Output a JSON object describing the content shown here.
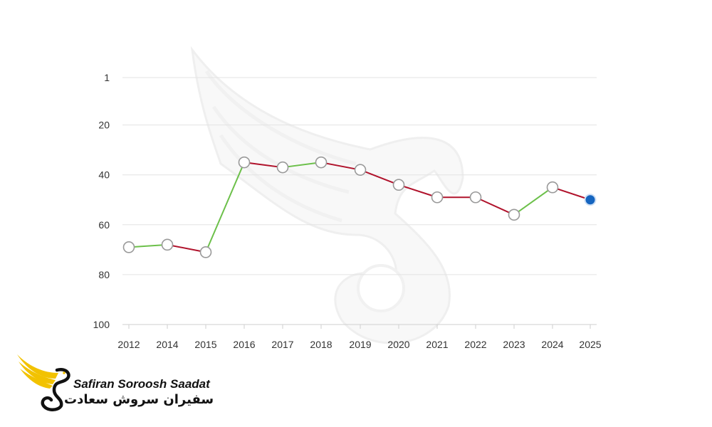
{
  "brand": {
    "name_en": "Safiran Soroosh Saadat",
    "name_fa": "سفیران سروش سعادت",
    "logo_icon": "swan-wing-icon",
    "watermark_icon": "swan-wing-watermark-icon",
    "accent_color": "#f2c200"
  },
  "chart_data": {
    "type": "line",
    "title": "",
    "xlabel": "",
    "ylabel": "",
    "categories": [
      "2012",
      "2014",
      "2015",
      "2016",
      "2017",
      "2018",
      "2019",
      "2020",
      "2021",
      "2022",
      "2023",
      "2024",
      "2025"
    ],
    "values": [
      69,
      68,
      71,
      35,
      37,
      35,
      38,
      44,
      49,
      49,
      56,
      45,
      50
    ],
    "y_axis": {
      "inverted": true,
      "ylim": [
        1,
        100
      ],
      "ticks": [
        1,
        20,
        40,
        60,
        80,
        100
      ]
    },
    "grid": true,
    "colors": {
      "improved": "#6cc04a",
      "declined": "#b0122b",
      "marker_fill": "#ffffff",
      "marker_stroke": "#999999",
      "latest_marker": "#1565c0"
    }
  }
}
